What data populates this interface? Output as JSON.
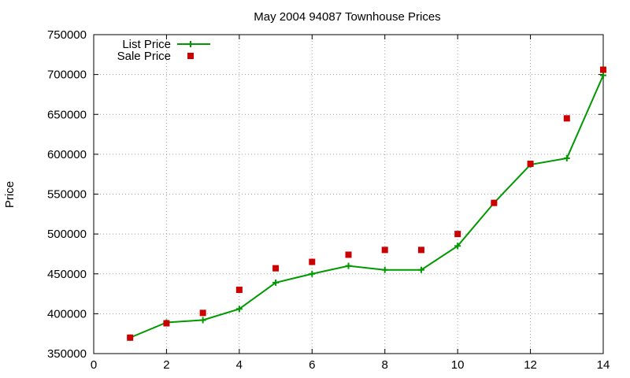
{
  "chart_data": {
    "type": "line",
    "title": "May 2004 94087 Townhouse Prices",
    "xlabel": "",
    "ylabel": "Price",
    "xlim": [
      0,
      14
    ],
    "ylim": [
      350000,
      750000
    ],
    "xticks": [
      "0",
      "2",
      "4",
      "6",
      "8",
      "10",
      "12",
      "14"
    ],
    "yticks": [
      "350000",
      "400000",
      "450000",
      "500000",
      "550000",
      "600000",
      "650000",
      "700000",
      "750000"
    ],
    "grid": true,
    "legend_position": "top-left",
    "series": [
      {
        "name": "List Price",
        "style": "line-with-points",
        "marker": "plus",
        "color": "#009900",
        "x": [
          1,
          2,
          3,
          4,
          5,
          6,
          7,
          8,
          9,
          10,
          11,
          12,
          13,
          14
        ],
        "y": [
          370000,
          389000,
          392000,
          406000,
          439000,
          450000,
          460000,
          455000,
          455000,
          485000,
          539000,
          587000,
          595000,
          699000
        ]
      },
      {
        "name": "Sale Price",
        "style": "points",
        "marker": "square",
        "color": "#cc0000",
        "x": [
          1,
          2,
          3,
          4,
          5,
          6,
          7,
          8,
          9,
          10,
          11,
          12,
          13,
          14
        ],
        "y": [
          370000,
          388000,
          401000,
          430000,
          457000,
          465000,
          474000,
          480000,
          480000,
          500000,
          539000,
          588000,
          645000,
          706000
        ]
      }
    ]
  }
}
